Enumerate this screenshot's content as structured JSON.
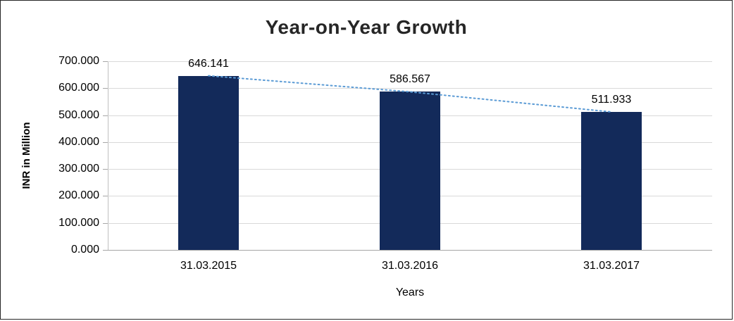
{
  "chart_data": {
    "type": "bar",
    "title": "Year-on-Year Growth",
    "xlabel": "Years",
    "ylabel": "INR in Million",
    "categories": [
      "31.03.2015",
      "31.03.2016",
      "31.03.2017"
    ],
    "values": [
      646.141,
      586.567,
      511.933
    ],
    "data_labels": [
      "646.141",
      "586.567",
      "511.933"
    ],
    "y_ticks": [
      "0.000",
      "100.000",
      "200.000",
      "300.000",
      "400.000",
      "500.000",
      "600.000",
      "700.000"
    ],
    "ylim": [
      0,
      700
    ],
    "grid": true,
    "legend": "none",
    "bar_color": "#132a5a",
    "trendline": {
      "style": "dotted",
      "color": "#5b9bd5"
    },
    "gridline_color": "#d9d9d9"
  }
}
